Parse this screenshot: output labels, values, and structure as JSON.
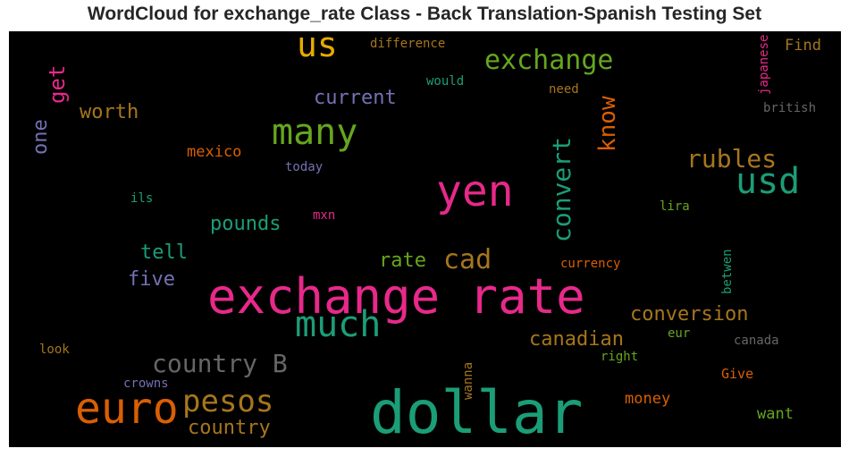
{
  "title": "WordCloud for exchange_rate Class - Back Translation-Spanish Testing Set",
  "chart_data": {
    "type": "wordcloud",
    "background": "#000000",
    "colormap": "Dark2",
    "words": [
      {
        "text": "exchange rate",
        "weight": 1.0,
        "color": "#e7298a",
        "vertical": false
      },
      {
        "text": "dollar",
        "weight": 0.95,
        "color": "#1b9e77",
        "vertical": false
      },
      {
        "text": "euro",
        "weight": 0.7,
        "color": "#d95f02",
        "vertical": false
      },
      {
        "text": "yen",
        "weight": 0.7,
        "color": "#e7298a",
        "vertical": false
      },
      {
        "text": "many",
        "weight": 0.6,
        "color": "#66a61e",
        "vertical": false
      },
      {
        "text": "much",
        "weight": 0.6,
        "color": "#1b9e77",
        "vertical": false
      },
      {
        "text": "usd",
        "weight": 0.58,
        "color": "#1b9e77",
        "vertical": false
      },
      {
        "text": "pesos",
        "weight": 0.5,
        "color": "#a6761d",
        "vertical": false
      },
      {
        "text": "us",
        "weight": 0.55,
        "color": "#e6ab02",
        "vertical": false
      },
      {
        "text": "exchange",
        "weight": 0.45,
        "color": "#66a61e",
        "vertical": false
      },
      {
        "text": "convert",
        "weight": 0.45,
        "color": "#1b9e77",
        "vertical": true
      },
      {
        "text": "country B",
        "weight": 0.42,
        "color": "#666666",
        "vertical": false
      },
      {
        "text": "rubles",
        "weight": 0.42,
        "color": "#a6761d",
        "vertical": false
      },
      {
        "text": "cad",
        "weight": 0.42,
        "color": "#a6761d",
        "vertical": false
      },
      {
        "text": "know",
        "weight": 0.4,
        "color": "#d95f02",
        "vertical": true
      },
      {
        "text": "conversion",
        "weight": 0.35,
        "color": "#a6761d",
        "vertical": false
      },
      {
        "text": "canadian",
        "weight": 0.35,
        "color": "#a6761d",
        "vertical": false
      },
      {
        "text": "country",
        "weight": 0.33,
        "color": "#a6761d",
        "vertical": false
      },
      {
        "text": "get",
        "weight": 0.33,
        "color": "#e7298a",
        "vertical": true
      },
      {
        "text": "worth",
        "weight": 0.33,
        "color": "#a6761d",
        "vertical": false
      },
      {
        "text": "current",
        "weight": 0.33,
        "color": "#7570b3",
        "vertical": false
      },
      {
        "text": "pounds",
        "weight": 0.33,
        "color": "#1b9e77",
        "vertical": false
      },
      {
        "text": "five",
        "weight": 0.33,
        "color": "#7570b3",
        "vertical": false
      },
      {
        "text": "tell",
        "weight": 0.32,
        "color": "#1b9e77",
        "vertical": false
      },
      {
        "text": "rate",
        "weight": 0.32,
        "color": "#66a61e",
        "vertical": false
      },
      {
        "text": "one",
        "weight": 0.32,
        "color": "#7570b3",
        "vertical": true
      },
      {
        "text": "want",
        "weight": 0.25,
        "color": "#66a61e",
        "vertical": false
      },
      {
        "text": "money",
        "weight": 0.25,
        "color": "#d95f02",
        "vertical": false
      },
      {
        "text": "mexico",
        "weight": 0.25,
        "color": "#d95f02",
        "vertical": false
      },
      {
        "text": "Find",
        "weight": 0.25,
        "color": "#a6761d",
        "vertical": false
      },
      {
        "text": "japanese",
        "weight": 0.2,
        "color": "#e7298a",
        "vertical": true
      },
      {
        "text": "british",
        "weight": 0.2,
        "color": "#666666",
        "vertical": false
      },
      {
        "text": "difference",
        "weight": 0.2,
        "color": "#a6761d",
        "vertical": false
      },
      {
        "text": "would",
        "weight": 0.2,
        "color": "#1b9e77",
        "vertical": false
      },
      {
        "text": "need",
        "weight": 0.19,
        "color": "#a6761d",
        "vertical": false
      },
      {
        "text": "today",
        "weight": 0.19,
        "color": "#7570b3",
        "vertical": false
      },
      {
        "text": "ils",
        "weight": 0.19,
        "color": "#1b9e77",
        "vertical": false
      },
      {
        "text": "mxn",
        "weight": 0.19,
        "color": "#e7298a",
        "vertical": false
      },
      {
        "text": "lira",
        "weight": 0.19,
        "color": "#66a61e",
        "vertical": false
      },
      {
        "text": "currency",
        "weight": 0.19,
        "color": "#d95f02",
        "vertical": false
      },
      {
        "text": "betwen",
        "weight": 0.19,
        "color": "#1b9e77",
        "vertical": true
      },
      {
        "text": "eur",
        "weight": 0.19,
        "color": "#66a61e",
        "vertical": false
      },
      {
        "text": "canada",
        "weight": 0.19,
        "color": "#666666",
        "vertical": false
      },
      {
        "text": "right",
        "weight": 0.19,
        "color": "#66a61e",
        "vertical": false
      },
      {
        "text": "look",
        "weight": 0.19,
        "color": "#a6761d",
        "vertical": false
      },
      {
        "text": "crowns",
        "weight": 0.19,
        "color": "#7570b3",
        "vertical": false
      },
      {
        "text": "wanna",
        "weight": 0.19,
        "color": "#a6761d",
        "vertical": true
      },
      {
        "text": "Give",
        "weight": 0.19,
        "color": "#d95f02",
        "vertical": false
      }
    ]
  }
}
